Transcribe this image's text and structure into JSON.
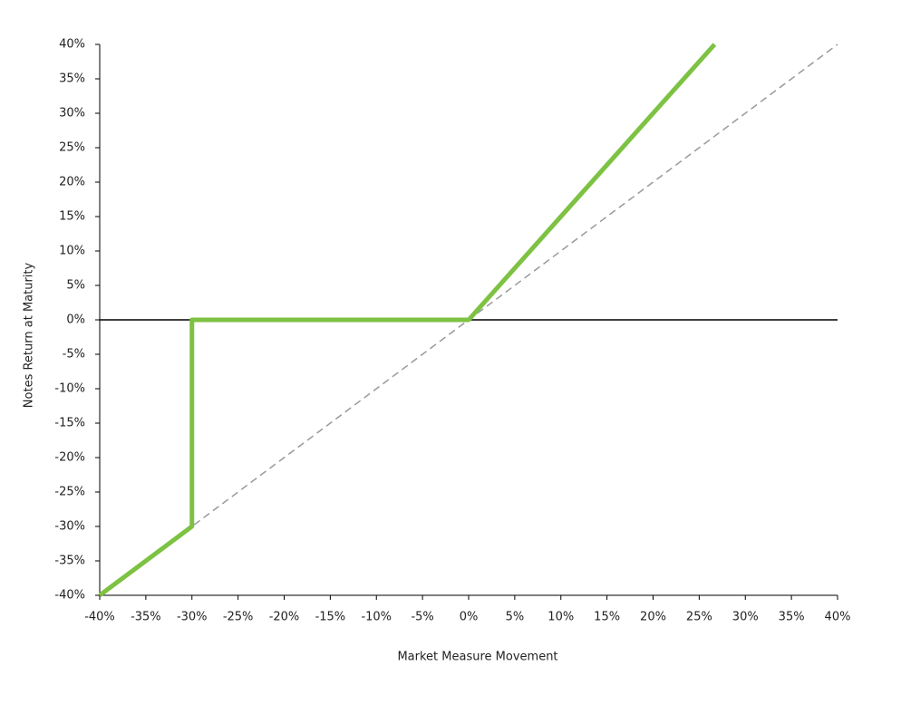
{
  "chart_data": {
    "type": "line",
    "xlabel": "Market Measure Movement",
    "ylabel": "Notes Return at Maturity",
    "xlim": [
      -40,
      40
    ],
    "ylim": [
      -40,
      40
    ],
    "xticks": [
      {
        "value": -40,
        "label": "-40%"
      },
      {
        "value": -35,
        "label": "-35%"
      },
      {
        "value": -30,
        "label": "-30%"
      },
      {
        "value": -25,
        "label": "-25%"
      },
      {
        "value": -20,
        "label": "-20%"
      },
      {
        "value": -15,
        "label": "-15%"
      },
      {
        "value": -10,
        "label": "-10%"
      },
      {
        "value": -5,
        "label": "-5%"
      },
      {
        "value": 0,
        "label": "0%"
      },
      {
        "value": 5,
        "label": "5%"
      },
      {
        "value": 10,
        "label": "10%"
      },
      {
        "value": 15,
        "label": "15%"
      },
      {
        "value": 20,
        "label": "20%"
      },
      {
        "value": 25,
        "label": "25%"
      },
      {
        "value": 30,
        "label": "30%"
      },
      {
        "value": 35,
        "label": "35%"
      },
      {
        "value": 40,
        "label": "40%"
      }
    ],
    "yticks": [
      {
        "value": -40,
        "label": "-40%"
      },
      {
        "value": -35,
        "label": "-35%"
      },
      {
        "value": -30,
        "label": "-30%"
      },
      {
        "value": -25,
        "label": "-25%"
      },
      {
        "value": -20,
        "label": "-20%"
      },
      {
        "value": -15,
        "label": "-15%"
      },
      {
        "value": -10,
        "label": "-10%"
      },
      {
        "value": -5,
        "label": "-5%"
      },
      {
        "value": 0,
        "label": "0%"
      },
      {
        "value": 5,
        "label": "5%"
      },
      {
        "value": 10,
        "label": "10%"
      },
      {
        "value": 15,
        "label": "15%"
      },
      {
        "value": 20,
        "label": "20%"
      },
      {
        "value": 25,
        "label": "25%"
      },
      {
        "value": 30,
        "label": "30%"
      },
      {
        "value": 35,
        "label": "35%"
      },
      {
        "value": 40,
        "label": "40%"
      }
    ],
    "series": [
      {
        "color": "#999999",
        "dashed": true,
        "width": 1.5,
        "x": [
          -40,
          40
        ],
        "values": [
          -40,
          40
        ]
      },
      {
        "color": "#7dc242",
        "dashed": false,
        "width": 5,
        "x": [
          -40,
          -30,
          -30,
          0,
          26.67
        ],
        "values": [
          -40,
          -30,
          0,
          0,
          40
        ]
      }
    ]
  }
}
